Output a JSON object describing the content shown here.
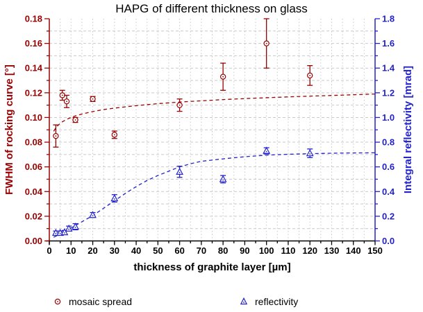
{
  "title": "HAPG of different thickness on glass",
  "axes": {
    "x": {
      "label": "thickness of graphite layer [µm]",
      "min": 0,
      "max": 150,
      "major_step": 10,
      "minor_step": 5,
      "tick_labels": [
        "0",
        "10",
        "20",
        "30",
        "40",
        "50",
        "60",
        "70",
        "80",
        "90",
        "100",
        "110",
        "120",
        "130",
        "140",
        "150"
      ],
      "color": "#000000"
    },
    "y_left": {
      "label": "FWHM of rocking curve [°]",
      "min": 0,
      "max": 0.18,
      "major_step": 0.02,
      "minor_step": 0.01,
      "tick_labels": [
        "0.00",
        "0.02",
        "0.04",
        "0.06",
        "0.08",
        "0.10",
        "0.12",
        "0.14",
        "0.16",
        "0.18"
      ],
      "color": "#990000"
    },
    "y_right": {
      "label": "Integral reflectivity [mrad]",
      "min": 0,
      "max": 1.8,
      "major_step": 0.2,
      "minor_step": 0.1,
      "tick_labels": [
        "0.0",
        "0.2",
        "0.4",
        "0.6",
        "0.8",
        "1.0",
        "1.2",
        "1.4",
        "1.6",
        "1.8"
      ],
      "color": "#2222cc"
    }
  },
  "legend": [
    {
      "label": "mosaic spread",
      "marker": "open-circle-dot",
      "color": "#990000"
    },
    {
      "label": "reflectivity",
      "marker": "open-triangle-dot",
      "color": "#2222cc"
    }
  ],
  "grid_color": "#c9c9c9",
  "chart_data": {
    "type": "scatter",
    "title": "HAPG of different thickness on glass",
    "xlabel": "thickness of graphite layer [µm]",
    "ylabel_left": "FWHM of rocking curve [°]",
    "ylabel_right": "Integral reflectivity [mrad]",
    "xlim": [
      0,
      150
    ],
    "ylim_left": [
      0,
      0.18
    ],
    "ylim_right": [
      0,
      1.8
    ],
    "grid": true,
    "legend_position": "bottom",
    "series": [
      {
        "name": "mosaic spread",
        "axis": "left",
        "units": "deg",
        "marker": "open-circle-dot",
        "color": "#990000",
        "points": [
          {
            "x": 3,
            "y": 0.085,
            "err": 0.009
          },
          {
            "x": 6,
            "y": 0.118,
            "err": 0.004
          },
          {
            "x": 8,
            "y": 0.113,
            "err": 0.005
          },
          {
            "x": 12,
            "y": 0.098,
            "err": 0.002
          },
          {
            "x": 20,
            "y": 0.115,
            "err": 0.002
          },
          {
            "x": 30,
            "y": 0.086,
            "err": 0.003
          },
          {
            "x": 60,
            "y": 0.11,
            "err": 0.005
          },
          {
            "x": 80,
            "y": 0.133,
            "err": 0.011
          },
          {
            "x": 100,
            "y": 0.16,
            "err": 0.02
          },
          {
            "x": 120,
            "y": 0.134,
            "err": 0.008
          }
        ],
        "trend": {
          "style": "dashed",
          "points": [
            [
              2,
              0.0888
            ],
            [
              3,
              0.0916
            ],
            [
              4,
              0.0936
            ],
            [
              5,
              0.0952
            ],
            [
              6,
              0.0965
            ],
            [
              8,
              0.0985
            ],
            [
              10,
              0.1
            ],
            [
              12,
              0.1013
            ],
            [
              15,
              0.1028
            ],
            [
              20,
              0.1048
            ],
            [
              25,
              0.1064
            ],
            [
              30,
              0.1076
            ],
            [
              40,
              0.1096
            ],
            [
              50,
              0.1112
            ],
            [
              60,
              0.1125
            ],
            [
              70,
              0.1135
            ],
            [
              80,
              0.1145
            ],
            [
              90,
              0.1153
            ],
            [
              100,
              0.116
            ],
            [
              110,
              0.1167
            ],
            [
              120,
              0.1173
            ],
            [
              135,
              0.1181
            ],
            [
              150,
              0.119
            ]
          ]
        }
      },
      {
        "name": "reflectivity",
        "axis": "right",
        "units": "mrad",
        "marker": "open-triangle-dot",
        "color": "#2222cc",
        "points": [
          {
            "x": 3,
            "y": 0.065,
            "err": 0.015
          },
          {
            "x": 5,
            "y": 0.065,
            "err": 0.015
          },
          {
            "x": 7,
            "y": 0.07,
            "err": 0.015
          },
          {
            "x": 9,
            "y": 0.1,
            "err": 0.02
          },
          {
            "x": 12,
            "y": 0.115,
            "err": 0.025
          },
          {
            "x": 20,
            "y": 0.21,
            "err": 0.02
          },
          {
            "x": 30,
            "y": 0.345,
            "err": 0.03
          },
          {
            "x": 60,
            "y": 0.56,
            "err": 0.045
          },
          {
            "x": 80,
            "y": 0.5,
            "err": 0.03
          },
          {
            "x": 100,
            "y": 0.73,
            "err": 0.025
          },
          {
            "x": 120,
            "y": 0.71,
            "err": 0.035
          }
        ],
        "trend": {
          "style": "dashed",
          "points": [
            [
              2,
              0.03
            ],
            [
              5,
              0.055
            ],
            [
              8,
              0.085
            ],
            [
              12,
              0.125
            ],
            [
              16,
              0.165
            ],
            [
              20,
              0.205
            ],
            [
              25,
              0.265
            ],
            [
              30,
              0.325
            ],
            [
              35,
              0.385
            ],
            [
              40,
              0.44
            ],
            [
              45,
              0.49
            ],
            [
              50,
              0.53
            ],
            [
              55,
              0.565
            ],
            [
              60,
              0.6
            ],
            [
              65,
              0.625
            ],
            [
              70,
              0.645
            ],
            [
              75,
              0.655
            ],
            [
              80,
              0.665
            ],
            [
              90,
              0.682
            ],
            [
              100,
              0.695
            ],
            [
              110,
              0.702
            ],
            [
              120,
              0.707
            ],
            [
              135,
              0.712
            ],
            [
              150,
              0.714
            ]
          ]
        }
      }
    ]
  }
}
